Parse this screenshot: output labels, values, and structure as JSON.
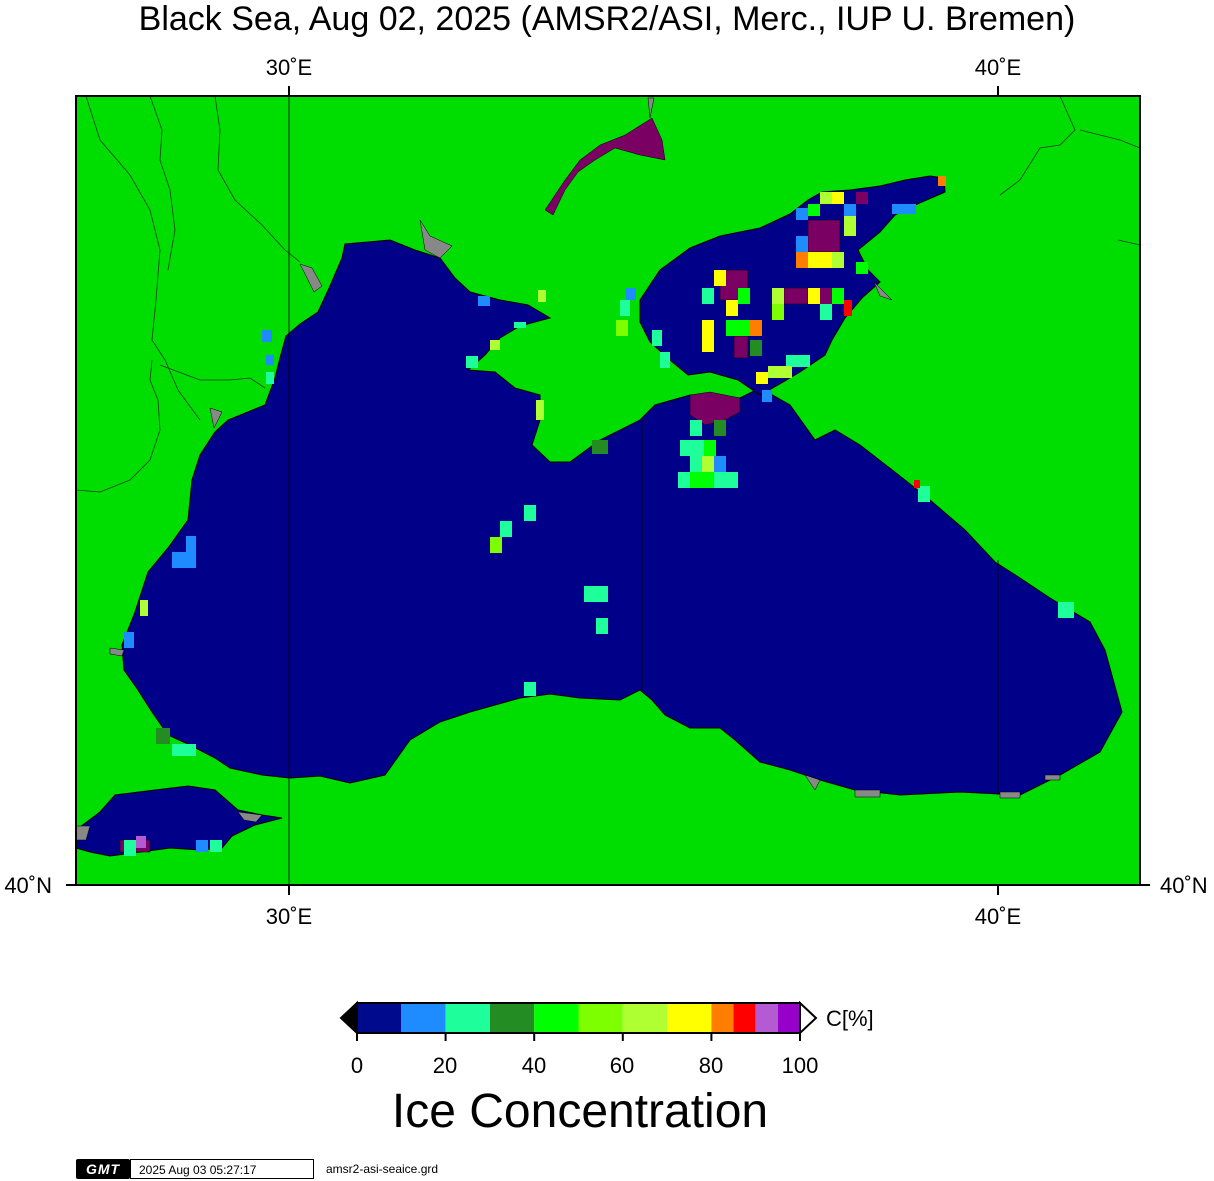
{
  "title": "Black Sea, Aug 02, 2025 (AMSR2/ASI, Merc., IUP U. Bremen)",
  "axes": {
    "top_ticks": [
      "30˚E",
      "40˚E"
    ],
    "bottom_ticks": [
      "30˚E",
      "40˚E"
    ],
    "left_tick": "40˚N",
    "right_tick": "40˚N"
  },
  "colors": {
    "land": "#00dd00",
    "sea": "#000088",
    "nodata": "#888888",
    "frame": "#000000"
  },
  "colorbar": {
    "ticks": [
      "0",
      "20",
      "40",
      "60",
      "80",
      "100"
    ],
    "unit": "C[%]",
    "label": "Ice Concentration",
    "segments": [
      {
        "range": "0-10",
        "color": "#000a8c"
      },
      {
        "range": "10-20",
        "color": "#1e8cff"
      },
      {
        "range": "20-30",
        "color": "#1eff9c"
      },
      {
        "range": "30-40",
        "color": "#238c23"
      },
      {
        "range": "40-50",
        "color": "#00ff00"
      },
      {
        "range": "50-60",
        "color": "#7dff00"
      },
      {
        "range": "60-70",
        "color": "#afff32"
      },
      {
        "range": "70-80",
        "color": "#ffff00"
      },
      {
        "range": "80-85",
        "color": "#ff7d00"
      },
      {
        "range": "85-90",
        "color": "#ff0000"
      },
      {
        "range": "90-95",
        "color": "#b45ad2"
      },
      {
        "range": "95-100",
        "color": "#9600c8"
      }
    ],
    "low_end_color": "#000000",
    "high_end_color": "#ffffff"
  },
  "footer": {
    "logo": "GMT",
    "timestamp": "2025 Aug 03 05:27:17",
    "file": "amsr2-asi-seaice.grd"
  }
}
